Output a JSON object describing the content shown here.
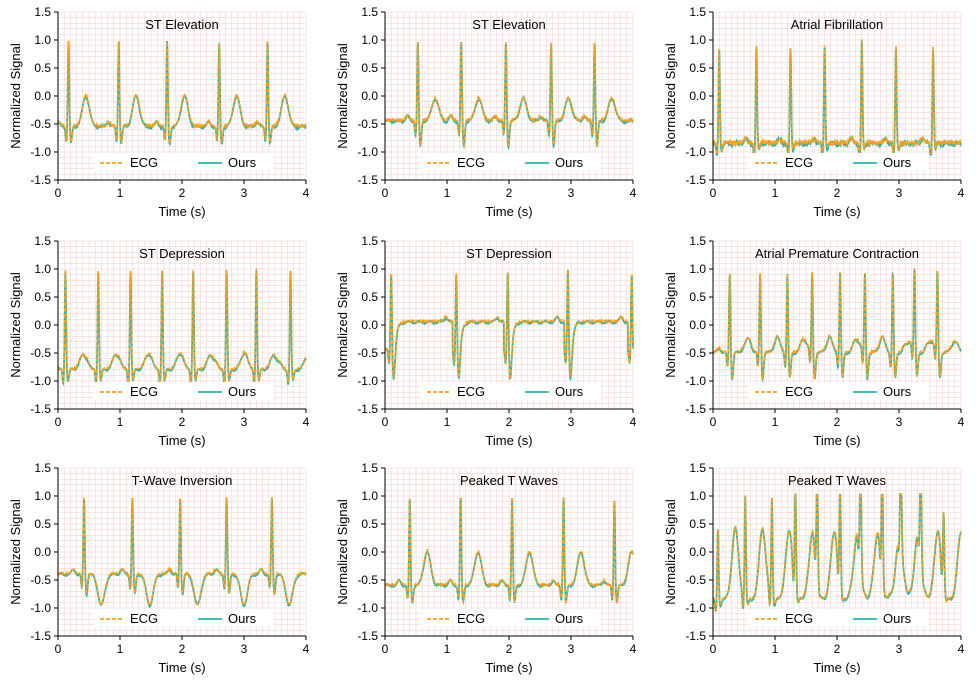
{
  "figure": {
    "ylabel": "Normalized Signal",
    "xlabel": "Time (s)",
    "xlim": [
      0,
      4
    ],
    "ylim": [
      -1.5,
      1.5
    ],
    "xticks": [
      "0",
      "1",
      "2",
      "3",
      "4"
    ],
    "yticks": [
      "1.5",
      "1.0",
      "0.5",
      "0.0",
      "-0.5",
      "-1.0",
      "-1.5"
    ],
    "legend": [
      {
        "label": "ECG",
        "color": "#f5a020",
        "style": "dashed"
      },
      {
        "label": "Ours",
        "color": "#2ab5a5",
        "style": "solid"
      }
    ],
    "grid_color": "#f7c9c9"
  },
  "chart_data": [
    {
      "type": "line",
      "title": "ST Elevation",
      "xlabel": "Time (s)",
      "ylabel": "Normalized Signal",
      "xlim": [
        0,
        4
      ],
      "ylim": [
        -1.5,
        1.5
      ],
      "series": [
        {
          "name": "ECG"
        },
        {
          "name": "Ours"
        }
      ],
      "beats": [
        0.17,
        0.98,
        1.76,
        2.6,
        3.38
      ],
      "heights": [
        1.0,
        1.0,
        0.98,
        0.95,
        0.98
      ],
      "baseline": -0.55,
      "t_amp": 0.55,
      "s_depth": -0.85,
      "noise": 0.03
    },
    {
      "type": "line",
      "title": "ST Elevation",
      "xlabel": "Time (s)",
      "ylabel": "Normalized Signal",
      "xlim": [
        0,
        4
      ],
      "ylim": [
        -1.5,
        1.5
      ],
      "series": [
        {
          "name": "ECG"
        },
        {
          "name": "Ours"
        }
      ],
      "beats": [
        0.53,
        1.23,
        1.95,
        2.68,
        3.38
      ],
      "heights": [
        0.98,
        0.97,
        0.97,
        0.96,
        0.97
      ],
      "baseline": -0.45,
      "t_amp": 0.4,
      "s_depth": -0.9,
      "noise": 0.03
    },
    {
      "type": "line",
      "title": "Atrial Fibrillation",
      "xlabel": "Time (s)",
      "ylabel": "Normalized Signal",
      "xlim": [
        0,
        4
      ],
      "ylim": [
        -1.5,
        1.5
      ],
      "series": [
        {
          "name": "ECG"
        },
        {
          "name": "Ours"
        }
      ],
      "beats": [
        0.1,
        0.7,
        1.25,
        1.8,
        2.4,
        2.95,
        3.55
      ],
      "heights": [
        0.85,
        0.88,
        0.85,
        0.87,
        1.0,
        0.85,
        0.85
      ],
      "baseline": -0.85,
      "t_amp": 0.0,
      "s_depth": -0.95,
      "noise": 0.08
    },
    {
      "type": "line",
      "title": "ST Depression",
      "xlabel": "Time (s)",
      "ylabel": "Normalized Signal",
      "xlim": [
        0,
        4
      ],
      "ylim": [
        -1.5,
        1.5
      ],
      "series": [
        {
          "name": "ECG"
        },
        {
          "name": "Ours"
        }
      ],
      "beats": [
        0.12,
        0.65,
        1.17,
        1.68,
        2.18,
        2.72,
        3.2,
        3.75
      ],
      "heights": [
        0.98,
        0.98,
        0.98,
        0.98,
        0.98,
        0.98,
        1.0,
        0.98
      ],
      "baseline": -0.8,
      "t_amp": 0.25,
      "s_depth": -1.0,
      "noise": 0.02
    },
    {
      "type": "line",
      "title": "ST Depression",
      "xlabel": "Time (s)",
      "ylabel": "Normalized Signal",
      "xlim": [
        0,
        4
      ],
      "ylim": [
        -1.5,
        1.5
      ],
      "series": [
        {
          "name": "ECG"
        },
        {
          "name": "Ours"
        }
      ],
      "beats": [
        0.1,
        1.15,
        1.98,
        2.95,
        3.98
      ],
      "heights": [
        0.95,
        0.95,
        0.98,
        1.0,
        0.92
      ],
      "baseline": -0.45,
      "t_amp": 0.0,
      "s_depth": -0.95,
      "noise": 0.02,
      "plateau": true
    },
    {
      "type": "line",
      "title": "Atrial Premature Contraction",
      "xlabel": "Time (s)",
      "ylabel": "Normalized Signal",
      "xlim": [
        0,
        4
      ],
      "ylim": [
        -1.5,
        1.5
      ],
      "series": [
        {
          "name": "ECG"
        },
        {
          "name": "Ours"
        }
      ],
      "beats": [
        0.27,
        0.76,
        1.2,
        1.6,
        2.05,
        2.45,
        2.9,
        3.25,
        3.62
      ],
      "heights": [
        0.93,
        0.93,
        0.93,
        0.93,
        0.95,
        0.93,
        0.95,
        0.93,
        0.93
      ],
      "baseline": -0.5,
      "t_amp": 0.2,
      "s_depth": -0.95,
      "noise": 0.02
    },
    {
      "type": "line",
      "title": "T-Wave Inversion",
      "xlabel": "Time (s)",
      "ylabel": "Normalized Signal",
      "xlim": [
        0,
        4
      ],
      "ylim": [
        -1.5,
        1.5
      ],
      "series": [
        {
          "name": "ECG"
        },
        {
          "name": "Ours"
        }
      ],
      "beats": [
        0.42,
        1.2,
        1.97,
        2.72,
        3.45
      ],
      "heights": [
        0.98,
        0.98,
        0.98,
        0.98,
        0.98
      ],
      "baseline": -0.4,
      "t_amp": -0.55,
      "s_depth": -0.75,
      "noise": 0.02
    },
    {
      "type": "line",
      "title": "Peaked T Waves",
      "xlabel": "Time (s)",
      "ylabel": "Normalized Signal",
      "xlim": [
        0,
        4
      ],
      "ylim": [
        -1.5,
        1.5
      ],
      "series": [
        {
          "name": "ECG"
        },
        {
          "name": "Ours"
        }
      ],
      "beats": [
        0.4,
        1.22,
        2.05,
        2.88,
        3.7
      ],
      "heights": [
        0.95,
        0.98,
        0.98,
        0.98,
        0.95
      ],
      "baseline": -0.6,
      "t_amp": 0.6,
      "s_depth": -0.9,
      "noise": 0.02
    },
    {
      "type": "line",
      "title": "Peaked T Waves",
      "xlabel": "Time (s)",
      "ylabel": "Normalized Signal",
      "xlim": [
        0,
        4
      ],
      "ylim": [
        -1.5,
        1.5
      ],
      "series": [
        {
          "name": "ECG"
        },
        {
          "name": "Ours"
        }
      ],
      "beats": [
        0.08,
        0.52,
        0.95,
        1.33,
        1.68,
        2.05,
        2.38,
        2.73,
        3.03,
        3.35,
        3.72
      ],
      "heights": [
        0.4,
        0.98,
        0.95,
        0.95,
        0.95,
        0.95,
        0.95,
        1.0,
        0.95,
        0.8,
        0.4
      ],
      "baseline": -0.85,
      "t_amp": 1.2,
      "s_depth": -0.95,
      "noise": 0.02
    }
  ]
}
